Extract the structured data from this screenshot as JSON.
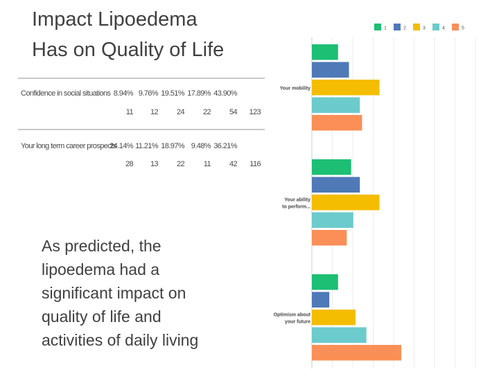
{
  "slide": {
    "title_lines": [
      "Impact Lipoedema",
      "Has on Quality of Life"
    ],
    "body_lines": [
      "As predicted, the",
      "lipoedema had a",
      "significant impact on",
      "quality of life and",
      "activities of daily living"
    ]
  },
  "table": {
    "rows": [
      {
        "label": "Confidence in social situations",
        "percents": [
          "8.94%",
          "9.76%",
          "19.51%",
          "17.89%",
          "43.90%"
        ],
        "counts": [
          "11",
          "12",
          "24",
          "22",
          "54",
          "123"
        ]
      },
      {
        "label": "Your long term career prospects",
        "percents": [
          "24.14%",
          "11.21%",
          "18.97%",
          "9.48%",
          "36.21%"
        ],
        "counts": [
          "28",
          "13",
          "22",
          "11",
          "42",
          "116"
        ]
      }
    ]
  },
  "chart_data": {
    "type": "bar",
    "orientation": "horizontal",
    "legend": [
      "1",
      "2",
      "3",
      "4",
      "5"
    ],
    "legend_position": "top-right",
    "categories": [
      "Your mobility",
      "Your ability to perform...",
      "Optimism about your future"
    ],
    "series": [
      {
        "name": "1",
        "color": "#1cbf73",
        "values": [
          12,
          18,
          12
        ]
      },
      {
        "name": "2",
        "color": "#4f79b7",
        "values": [
          17,
          22,
          8
        ]
      },
      {
        "name": "3",
        "color": "#f5bd00",
        "values": [
          31,
          31,
          20
        ]
      },
      {
        "name": "4",
        "color": "#6ccbcc",
        "values": [
          22,
          19,
          25
        ]
      },
      {
        "name": "5",
        "color": "#fa8f57",
        "values": [
          23,
          16,
          41
        ]
      }
    ],
    "xlim": [
      0,
      75
    ],
    "grid": true
  }
}
